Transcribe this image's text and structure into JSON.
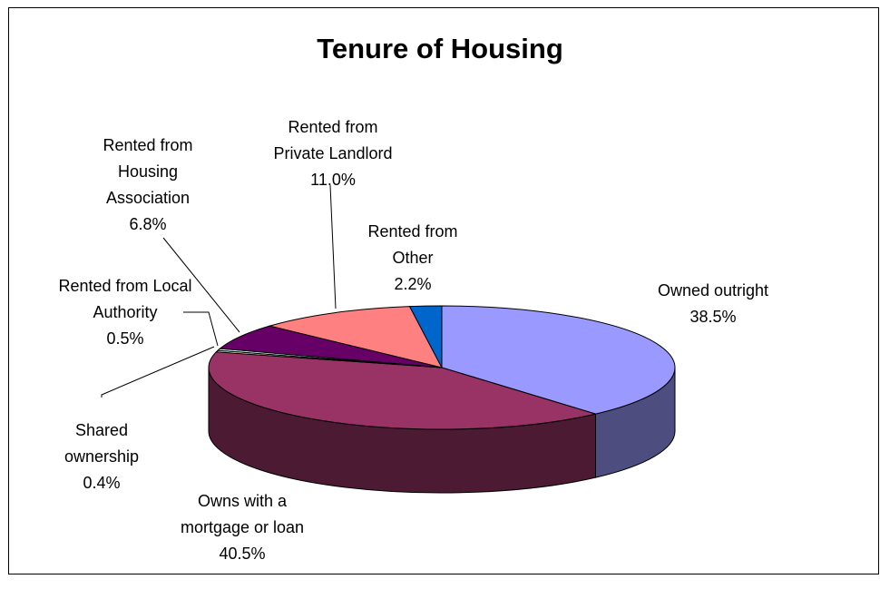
{
  "chart_data": {
    "type": "pie3d",
    "title": "Tenure of Housing",
    "categories": [
      "Owned outright",
      "Owns with a mortgage or loan",
      "Shared ownership",
      "Rented from Local Authority",
      "Rented from Housing Association",
      "Rented from Private Landlord",
      "Rented from Other"
    ],
    "values": [
      38.5,
      40.5,
      0.4,
      0.5,
      6.8,
      11.0,
      2.2
    ],
    "value_labels": [
      "38.5%",
      "40.5%",
      "0.4%",
      "0.5%",
      "6.8%",
      "11.0%",
      "2.2%"
    ],
    "colors": [
      "#9999ff",
      "#993366",
      "#ffffcc",
      "#ccffff",
      "#660066",
      "#ff8080",
      "#0066cc"
    ]
  }
}
